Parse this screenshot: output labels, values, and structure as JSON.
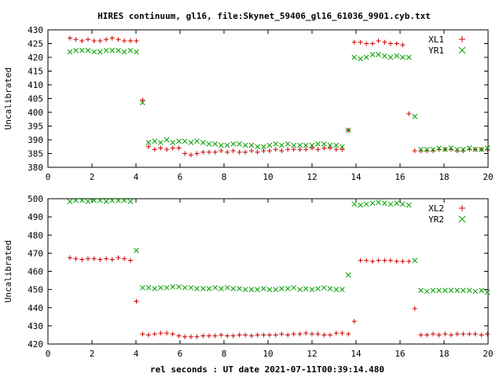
{
  "title": "HIRES continuum, gl16, file:Skynet_59406_gl16_61036_9901.cyb.txt",
  "xlabel": "rel seconds : UT date 2021-07-11T00:39:14.480",
  "colors": {
    "red": "#cc0000",
    "green": "#00a000",
    "axis": "#000000"
  },
  "chart_data": [
    {
      "type": "scatter",
      "ylabel": "Uncalibrated",
      "xlim": [
        0,
        20
      ],
      "ylim": [
        380,
        430
      ],
      "xticks": [
        0,
        2,
        4,
        6,
        8,
        10,
        12,
        14,
        16,
        18,
        20
      ],
      "yticks": [
        380,
        385,
        390,
        395,
        400,
        405,
        410,
        415,
        420,
        425,
        430
      ],
      "grid": false,
      "legend_position": "top-right",
      "series": [
        {
          "name": "XL1",
          "marker": "plus",
          "color": "#cc0000",
          "x": [
            1.0,
            1.27,
            1.55,
            1.82,
            2.1,
            2.37,
            2.65,
            2.92,
            3.2,
            3.47,
            3.75,
            4.02,
            4.3,
            4.57,
            4.85,
            5.12,
            5.4,
            5.67,
            5.95,
            6.22,
            6.5,
            6.77,
            7.05,
            7.32,
            7.6,
            7.87,
            8.15,
            8.42,
            8.7,
            8.97,
            9.25,
            9.52,
            9.8,
            10.07,
            10.35,
            10.62,
            10.9,
            11.17,
            11.45,
            11.72,
            12.0,
            12.27,
            12.55,
            12.82,
            13.1,
            13.37,
            13.65,
            13.92,
            14.2,
            14.47,
            14.75,
            15.02,
            15.3,
            15.57,
            15.85,
            16.12,
            16.4,
            16.67,
            16.95,
            17.22,
            17.5,
            17.77,
            18.05,
            18.32,
            18.6,
            18.87,
            19.15,
            19.42,
            19.7,
            19.97
          ],
          "y": [
            427,
            426.5,
            426,
            426.5,
            426,
            426,
            426.5,
            427,
            426.5,
            426,
            426,
            426,
            404.5,
            387.5,
            386.5,
            387,
            386.5,
            387,
            387,
            385,
            384.5,
            385,
            385.5,
            385.5,
            385.5,
            386,
            385.5,
            386,
            385.5,
            385.5,
            386,
            385.5,
            386,
            386,
            386.5,
            386,
            386.5,
            386.5,
            386.5,
            386.5,
            387,
            386.5,
            387,
            387,
            386.5,
            386.5,
            393.5,
            425.5,
            425.5,
            425,
            425,
            426,
            425.5,
            425,
            425,
            424.5,
            399.5,
            386,
            386,
            386,
            386,
            386.5,
            386.5,
            386.5,
            386,
            386,
            386.5,
            386.5,
            386.5,
            386.5
          ]
        },
        {
          "name": "YR1",
          "marker": "cross",
          "color": "#00a000",
          "x": [
            1.0,
            1.27,
            1.55,
            1.82,
            2.1,
            2.37,
            2.65,
            2.92,
            3.2,
            3.47,
            3.75,
            4.02,
            4.3,
            4.57,
            4.85,
            5.12,
            5.4,
            5.67,
            5.95,
            6.22,
            6.5,
            6.77,
            7.05,
            7.32,
            7.6,
            7.87,
            8.15,
            8.42,
            8.7,
            8.97,
            9.25,
            9.52,
            9.8,
            10.07,
            10.35,
            10.62,
            10.9,
            11.17,
            11.45,
            11.72,
            12.0,
            12.27,
            12.55,
            12.82,
            13.1,
            13.37,
            13.65,
            13.92,
            14.2,
            14.47,
            14.75,
            15.02,
            15.3,
            15.57,
            15.85,
            16.12,
            16.4,
            16.67,
            16.95,
            17.22,
            17.5,
            17.77,
            18.05,
            18.32,
            18.6,
            18.87,
            19.15,
            19.42,
            19.7,
            19.97
          ],
          "y": [
            422,
            422.5,
            422.5,
            422.5,
            422,
            422,
            422.5,
            422.5,
            422.5,
            422,
            422.5,
            422,
            403.5,
            389,
            389.5,
            389,
            390,
            389,
            389.5,
            389.5,
            389,
            389.5,
            389,
            388.5,
            388.5,
            388,
            388,
            388.5,
            388.5,
            388,
            388,
            387.5,
            387.5,
            388,
            388.5,
            388,
            388.5,
            388,
            388,
            388,
            388,
            388.5,
            388.5,
            388,
            388,
            387.5,
            393.5,
            420,
            419.5,
            420,
            421,
            421,
            420.5,
            420,
            420.5,
            420,
            420,
            398.5,
            386.5,
            386.5,
            386.5,
            387,
            386.5,
            387,
            386.5,
            386.5,
            387,
            386.5,
            386.5,
            387
          ]
        }
      ]
    },
    {
      "type": "scatter",
      "ylabel": "Uncalibrated",
      "xlim": [
        0,
        20
      ],
      "ylim": [
        420,
        500
      ],
      "xticks": [
        0,
        2,
        4,
        6,
        8,
        10,
        12,
        14,
        16,
        18,
        20
      ],
      "yticks": [
        420,
        430,
        440,
        450,
        460,
        470,
        480,
        490,
        500
      ],
      "grid": false,
      "legend_position": "top-right",
      "series": [
        {
          "name": "XL2",
          "marker": "plus",
          "color": "#cc0000",
          "x": [
            1.0,
            1.27,
            1.55,
            1.82,
            2.1,
            2.37,
            2.65,
            2.92,
            3.2,
            3.47,
            3.75,
            4.02,
            4.3,
            4.57,
            4.85,
            5.12,
            5.4,
            5.67,
            5.95,
            6.22,
            6.5,
            6.77,
            7.05,
            7.32,
            7.6,
            7.87,
            8.15,
            8.42,
            8.7,
            8.97,
            9.25,
            9.52,
            9.8,
            10.07,
            10.35,
            10.62,
            10.9,
            11.17,
            11.45,
            11.72,
            12.0,
            12.27,
            12.55,
            12.82,
            13.1,
            13.37,
            13.65,
            13.92,
            14.2,
            14.47,
            14.75,
            15.02,
            15.3,
            15.57,
            15.85,
            16.12,
            16.4,
            16.67,
            16.95,
            17.22,
            17.5,
            17.77,
            18.05,
            18.32,
            18.6,
            18.87,
            19.15,
            19.42,
            19.7,
            19.97
          ],
          "y": [
            467.5,
            467,
            466.5,
            467,
            467,
            466.5,
            467,
            466.5,
            467.5,
            467,
            466,
            443.5,
            425.5,
            425,
            425.5,
            426,
            426,
            425.5,
            424.5,
            424,
            424,
            424,
            424.5,
            424.5,
            424.5,
            425,
            424.5,
            424.5,
            425,
            425,
            424.5,
            425,
            425,
            425,
            425,
            425.5,
            425,
            425.5,
            425.5,
            426,
            425.5,
            425.5,
            425,
            425,
            426,
            426,
            425.5,
            432.5,
            466,
            466,
            465.5,
            466,
            466,
            466,
            465.5,
            465.5,
            465.5,
            439.5,
            425,
            425,
            425.5,
            425,
            425.5,
            425,
            425.5,
            425.5,
            425.5,
            425.5,
            425,
            425.5
          ]
        },
        {
          "name": "YR2",
          "marker": "cross",
          "color": "#00a000",
          "x": [
            1.0,
            1.27,
            1.55,
            1.82,
            2.1,
            2.37,
            2.65,
            2.92,
            3.2,
            3.47,
            3.75,
            4.02,
            4.3,
            4.57,
            4.85,
            5.12,
            5.4,
            5.67,
            5.95,
            6.22,
            6.5,
            6.77,
            7.05,
            7.32,
            7.6,
            7.87,
            8.15,
            8.42,
            8.7,
            8.97,
            9.25,
            9.52,
            9.8,
            10.07,
            10.35,
            10.62,
            10.9,
            11.17,
            11.45,
            11.72,
            12.0,
            12.27,
            12.55,
            12.82,
            13.1,
            13.37,
            13.65,
            13.92,
            14.2,
            14.47,
            14.75,
            15.02,
            15.3,
            15.57,
            15.85,
            16.12,
            16.4,
            16.67,
            16.95,
            17.22,
            17.5,
            17.77,
            18.05,
            18.32,
            18.6,
            18.87,
            19.15,
            19.42,
            19.7,
            19.97
          ],
          "y": [
            498.5,
            499,
            499,
            498.5,
            499,
            499,
            498.5,
            499,
            499,
            499,
            498.5,
            471.5,
            451,
            451,
            450.5,
            451,
            451,
            451.5,
            451.5,
            451,
            451,
            450.5,
            450.5,
            450.5,
            451,
            450.5,
            451,
            450.5,
            450.5,
            450,
            450,
            450,
            450.5,
            450,
            450,
            450.5,
            450.5,
            451,
            450,
            450.5,
            450,
            450.5,
            451,
            450.5,
            450,
            450,
            458,
            497,
            496.5,
            497,
            497.5,
            498,
            497.5,
            497,
            497.5,
            497,
            496.5,
            466,
            449.5,
            449,
            449.5,
            449.5,
            449.5,
            449.5,
            449.5,
            449.5,
            449.5,
            449,
            449.5,
            448.5
          ]
        }
      ]
    }
  ]
}
